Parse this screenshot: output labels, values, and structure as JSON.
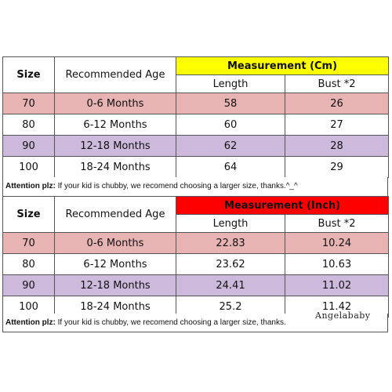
{
  "headers": {
    "size": "Size",
    "age": "Recommended Age",
    "length": "Length",
    "bust": "Bust *2"
  },
  "cm_table": {
    "title": "Measurement (Cm)",
    "rows": [
      {
        "size": "70",
        "age": "0-6 Months",
        "length": "58",
        "bust": "26"
      },
      {
        "size": "80",
        "age": "6-12 Months",
        "length": "60",
        "bust": "27"
      },
      {
        "size": "90",
        "age": "12-18 Months",
        "length": "62",
        "bust": "28"
      },
      {
        "size": "100",
        "age": "18-24 Months",
        "length": "64",
        "bust": "29"
      }
    ]
  },
  "inch_table": {
    "title": "Measurement (Inch)",
    "rows": [
      {
        "size": "70",
        "age": "0-6 Months",
        "length": "22.83",
        "bust": "10.24"
      },
      {
        "size": "80",
        "age": "6-12 Months",
        "length": "23.62",
        "bust": "10.63"
      },
      {
        "size": "90",
        "age": "12-18 Months",
        "length": "24.41",
        "bust": "11.02"
      },
      {
        "size": "100",
        "age": "18-24 Months",
        "length": "25.2",
        "bust": "11.42"
      }
    ]
  },
  "note": {
    "label": "Attention plz:",
    "text": " If your kid is chubby, we recomend choosing a larger size, thanks.^_^"
  },
  "note2": {
    "text": " If your kid is chubby, we recomend choosing a larger size, thanks."
  },
  "watermark": "Angelababy",
  "colors": {
    "cm_header": "#ffff00",
    "inch_header": "#ff0000",
    "row_pink": "#e8b3b3",
    "row_purple": "#cdb9dc"
  }
}
